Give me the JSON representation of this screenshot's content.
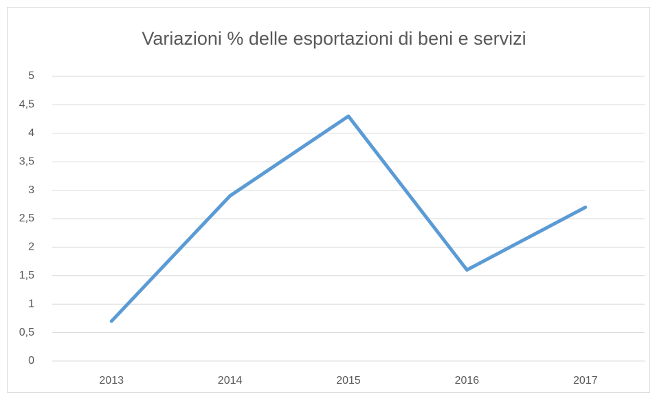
{
  "chart_data": {
    "type": "line",
    "title": "Variazioni % delle esportazioni di beni e servizi",
    "categories": [
      "2013",
      "2014",
      "2015",
      "2016",
      "2017"
    ],
    "values": [
      0.7,
      2.9,
      4.3,
      1.6,
      2.7
    ],
    "color": "#5b9bd5",
    "ylim": [
      0,
      5
    ],
    "yticks": [
      0,
      {
        "value": 0.5,
        "label": "0,5"
      },
      1,
      {
        "value": 1.5,
        "label": "1,5"
      },
      2,
      {
        "value": 2.5,
        "label": "2,5"
      },
      3,
      {
        "value": 3.5,
        "label": "3,5"
      },
      4,
      {
        "value": 4.5,
        "label": "4,5"
      },
      5
    ],
    "grid": true
  }
}
